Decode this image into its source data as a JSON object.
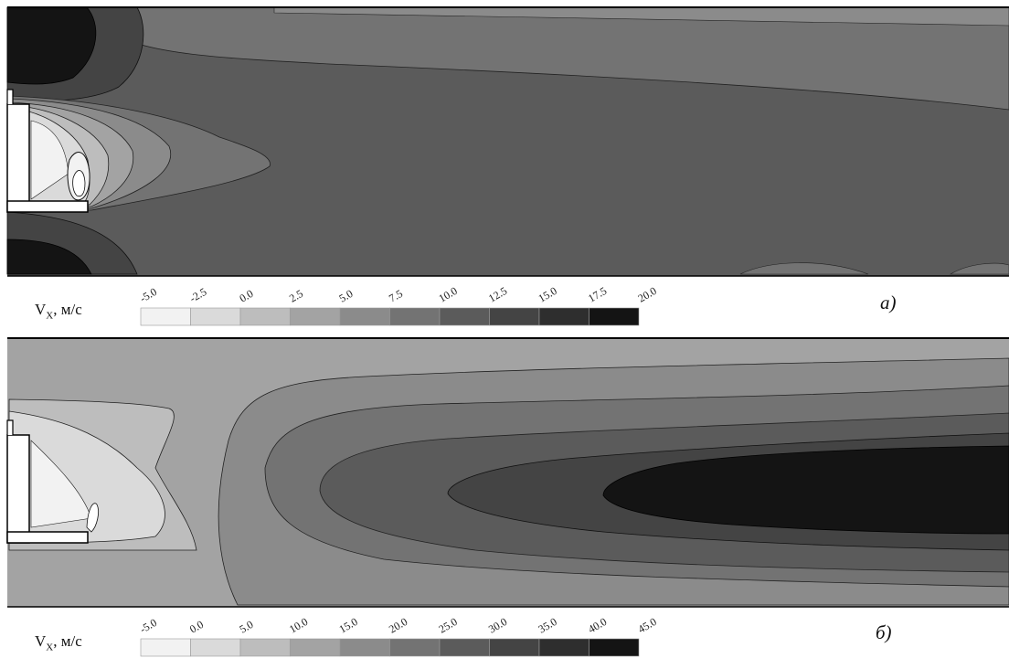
{
  "panels": [
    {
      "id": "a",
      "panel_label": "a)",
      "colorbar_title_main": "V",
      "colorbar_title_sub": "X",
      "colorbar_title_unit": ",  м/с"
    },
    {
      "id": "b",
      "panel_label": "б)",
      "colorbar_title_main": "V",
      "colorbar_title_sub": "X",
      "colorbar_title_unit": ",  м/с"
    }
  ],
  "chart_data": [
    {
      "type": "contour",
      "quantity": "V_X",
      "unit": "м/с",
      "panel_label": "a)",
      "levels": [
        -5.0,
        -2.5,
        0.0,
        2.5,
        5.0,
        7.5,
        10.0,
        12.5,
        15.0,
        17.5,
        20.0
      ],
      "level_labels": [
        "-5.0",
        "-2.5",
        "0.0",
        "2.5",
        "5.0",
        "7.5",
        "10.0",
        "12.5",
        "15.0",
        "17.5",
        "20.0"
      ],
      "colors": [
        "#f2f2f2",
        "#dadada",
        "#bdbdbd",
        "#a3a3a3",
        "#8b8b8b",
        "#737373",
        "#5b5b5b",
        "#444444",
        "#2e2e2e",
        "#141414"
      ],
      "regions": {
        "background": 6,
        "upper_far": 5,
        "top_recirc": 9,
        "top_recirc_shell": 8,
        "bottom_recirc": 8,
        "bottom_recirc_shell": 7,
        "cavity_bands": [
          5,
          4,
          3,
          2,
          1,
          0
        ],
        "right_bottom_bump": 5
      }
    },
    {
      "type": "contour",
      "quantity": "V_X",
      "unit": "м/с",
      "panel_label": "б)",
      "levels": [
        -5.0,
        0.0,
        5.0,
        10.0,
        15.0,
        20.0,
        25.0,
        30.0,
        35.0,
        40.0,
        45.0
      ],
      "level_labels": [
        "-5.0",
        "0.0",
        "5.0",
        "10.0",
        "15.0",
        "20.0",
        "25.0",
        "30.0",
        "35.0",
        "40.0",
        "45.0"
      ],
      "colors": [
        "#f2f2f2",
        "#dadada",
        "#bdbdbd",
        "#a3a3a3",
        "#8b8b8b",
        "#737373",
        "#5b5b5b",
        "#444444",
        "#2e2e2e",
        "#141414"
      ],
      "regions": {
        "background": 3,
        "jet_bands": [
          5,
          6,
          7,
          8,
          9
        ],
        "cavity_bands": [
          2,
          1,
          0
        ]
      }
    }
  ]
}
